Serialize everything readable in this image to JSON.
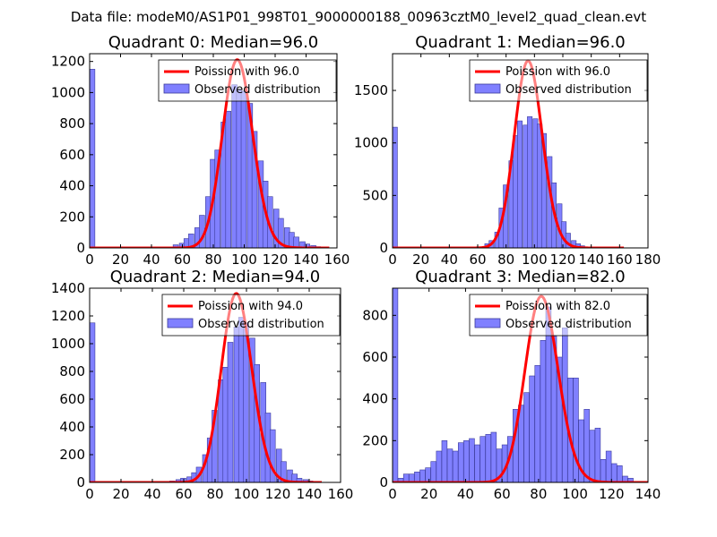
{
  "suptitle": "Data file: modeM0/AS1P01_998T01_9000000188_00963cztM0_level2_quad_clean.evt",
  "colors": {
    "hist_fill": "#8080ff",
    "hist_edge": "#3a3a99",
    "curve": "#ff0000",
    "axes": "#000000"
  },
  "chart_data": [
    {
      "type": "histogram",
      "title": "Quadrant 0: Median=96.0",
      "median": 96.0,
      "xlim": [
        0,
        160
      ],
      "ylim": [
        0,
        1250
      ],
      "xticks": [
        0,
        20,
        40,
        60,
        80,
        100,
        120,
        140,
        160
      ],
      "yticks": [
        0,
        200,
        400,
        600,
        800,
        1000,
        1200
      ],
      "bin_width": 3.4,
      "bins": [
        [
          0,
          1150
        ],
        [
          51,
          5
        ],
        [
          54,
          20
        ],
        [
          58,
          30
        ],
        [
          61,
          60
        ],
        [
          64,
          90
        ],
        [
          68,
          130
        ],
        [
          71,
          210
        ],
        [
          75,
          330
        ],
        [
          78,
          570
        ],
        [
          81,
          630
        ],
        [
          85,
          810
        ],
        [
          88,
          880
        ],
        [
          92,
          1050
        ],
        [
          95,
          1020
        ],
        [
          98,
          1010
        ],
        [
          102,
          930
        ],
        [
          105,
          750
        ],
        [
          109,
          560
        ],
        [
          112,
          430
        ],
        [
          115,
          330
        ],
        [
          119,
          250
        ],
        [
          122,
          190
        ],
        [
          126,
          130
        ],
        [
          129,
          100
        ],
        [
          132,
          70
        ],
        [
          136,
          40
        ],
        [
          139,
          25
        ],
        [
          143,
          15
        ],
        [
          146,
          8
        ]
      ],
      "curve": {
        "mean": 96.0,
        "peak": 1210,
        "x0": 0,
        "x1": 155
      },
      "legend": [
        "Poission with 96.0",
        "Observed distribution"
      ]
    },
    {
      "type": "histogram",
      "title": "Quadrant 1: Median=96.0",
      "median": 96.0,
      "xlim": [
        0,
        180
      ],
      "ylim": [
        0,
        1850
      ],
      "xticks": [
        0,
        20,
        40,
        60,
        80,
        100,
        120,
        140,
        160,
        180
      ],
      "yticks": [
        0,
        500,
        1000,
        1500
      ],
      "bin_width": 3.4,
      "bins": [
        [
          0,
          1150
        ],
        [
          62,
          10
        ],
        [
          65,
          40
        ],
        [
          68,
          70
        ],
        [
          72,
          150
        ],
        [
          75,
          380
        ],
        [
          78,
          600
        ],
        [
          82,
          830
        ],
        [
          85,
          1070
        ],
        [
          88,
          1210
        ],
        [
          92,
          1170
        ],
        [
          95,
          1250
        ],
        [
          99,
          1230
        ],
        [
          102,
          1180
        ],
        [
          105,
          1090
        ],
        [
          109,
          870
        ],
        [
          112,
          620
        ],
        [
          116,
          420
        ],
        [
          119,
          250
        ],
        [
          122,
          140
        ],
        [
          126,
          70
        ],
        [
          129,
          40
        ],
        [
          132,
          20
        ],
        [
          136,
          10
        ],
        [
          139,
          5
        ]
      ],
      "curve": {
        "mean": 96.0,
        "peak": 1780,
        "x0": 0,
        "x1": 163
      },
      "legend": [
        "Poission with 96.0",
        "Observed distribution"
      ]
    },
    {
      "type": "histogram",
      "title": "Quadrant 2: Median=94.0",
      "median": 94.0,
      "xlim": [
        0,
        160
      ],
      "ylim": [
        0,
        1400
      ],
      "xticks": [
        0,
        20,
        40,
        60,
        80,
        100,
        120,
        140,
        160
      ],
      "yticks": [
        0,
        200,
        400,
        600,
        800,
        1000,
        1200,
        1400
      ],
      "bin_width": 3.4,
      "bins": [
        [
          0,
          1150
        ],
        [
          51,
          10
        ],
        [
          55,
          20
        ],
        [
          58,
          30
        ],
        [
          62,
          40
        ],
        [
          65,
          70
        ],
        [
          68,
          110
        ],
        [
          72,
          200
        ],
        [
          75,
          320
        ],
        [
          78,
          520
        ],
        [
          82,
          740
        ],
        [
          85,
          830
        ],
        [
          88,
          1010
        ],
        [
          92,
          1120
        ],
        [
          95,
          1190
        ],
        [
          98,
          1150
        ],
        [
          102,
          1040
        ],
        [
          105,
          850
        ],
        [
          109,
          720
        ],
        [
          112,
          500
        ],
        [
          115,
          380
        ],
        [
          119,
          240
        ],
        [
          122,
          150
        ],
        [
          126,
          90
        ],
        [
          129,
          60
        ],
        [
          132,
          30
        ],
        [
          136,
          20
        ],
        [
          139,
          10
        ]
      ],
      "curve": {
        "mean": 94.0,
        "peak": 1360,
        "x0": 0,
        "x1": 148
      },
      "legend": [
        "Poission with 94.0",
        "Observed distribution"
      ]
    },
    {
      "type": "histogram",
      "title": "Quadrant 3: Median=82.0",
      "median": 82.0,
      "xlim": [
        0,
        140
      ],
      "ylim": [
        0,
        930
      ],
      "xticks": [
        0,
        20,
        40,
        60,
        80,
        100,
        120,
        140
      ],
      "yticks": [
        0,
        200,
        400,
        600,
        800
      ],
      "bin_width": 2.9,
      "bins": [
        [
          0,
          930
        ],
        [
          3,
          20
        ],
        [
          6,
          40
        ],
        [
          9,
          40
        ],
        [
          12,
          50
        ],
        [
          15,
          60
        ],
        [
          18,
          70
        ],
        [
          21,
          100
        ],
        [
          24,
          150
        ],
        [
          27,
          200
        ],
        [
          30,
          160
        ],
        [
          33,
          150
        ],
        [
          36,
          190
        ],
        [
          39,
          200
        ],
        [
          42,
          210
        ],
        [
          45,
          180
        ],
        [
          48,
          220
        ],
        [
          51,
          230
        ],
        [
          54,
          240
        ],
        [
          57,
          160
        ],
        [
          60,
          180
        ],
        [
          63,
          220
        ],
        [
          66,
          350
        ],
        [
          69,
          370
        ],
        [
          72,
          430
        ],
        [
          75,
          510
        ],
        [
          78,
          560
        ],
        [
          81,
          680
        ],
        [
          84,
          840
        ],
        [
          87,
          700
        ],
        [
          90,
          600
        ],
        [
          93,
          740
        ],
        [
          96,
          500
        ],
        [
          99,
          500
        ],
        [
          102,
          300
        ],
        [
          105,
          350
        ],
        [
          108,
          250
        ],
        [
          111,
          260
        ],
        [
          114,
          110
        ],
        [
          117,
          150
        ],
        [
          120,
          90
        ],
        [
          123,
          80
        ],
        [
          126,
          30
        ],
        [
          129,
          20
        ]
      ],
      "curve": {
        "mean": 82.0,
        "peak": 890,
        "x0": 0,
        "x1": 140
      },
      "legend": [
        "Poission with 82.0",
        "Observed distribution"
      ]
    }
  ]
}
